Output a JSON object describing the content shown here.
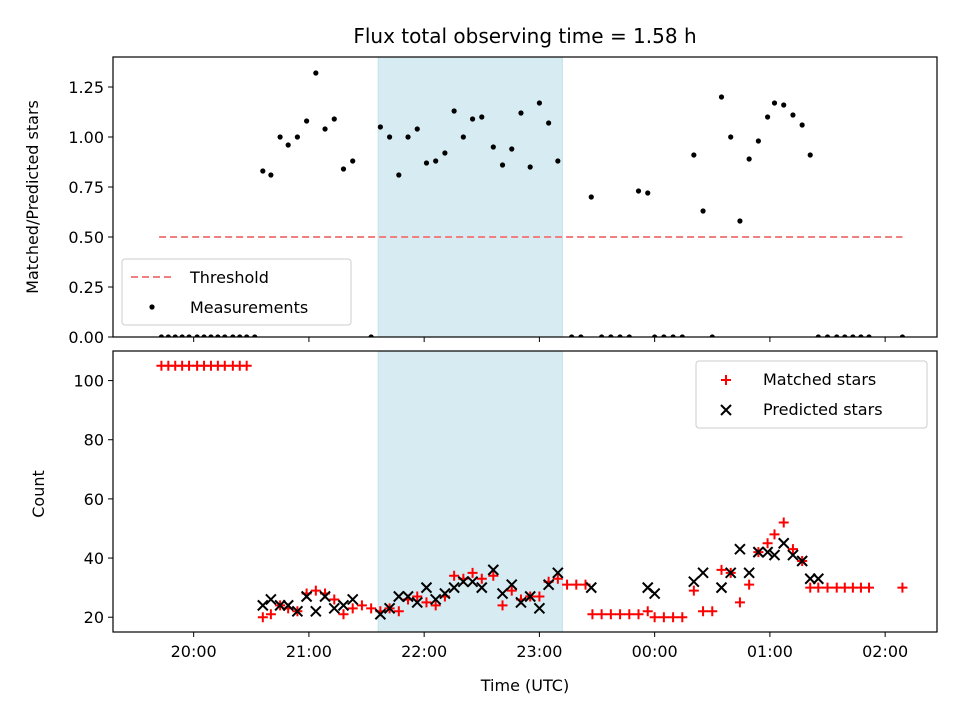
{
  "chart_data": [
    {
      "type": "scatter",
      "panel": "top",
      "title": "Flux total observing time = 1.58 h",
      "ylabel": "Matched/Predicted stars",
      "xlabel": "",
      "xlim": [
        19.3,
        26.45
      ],
      "ylim": [
        0,
        1.4
      ],
      "yticks": [
        0.0,
        0.25,
        0.5,
        0.75,
        1.0,
        1.25
      ],
      "ytick_labels": [
        "0.00",
        "0.25",
        "0.50",
        "0.75",
        "1.00",
        "1.25"
      ],
      "shaded_region": {
        "x": [
          21.6,
          23.2
        ],
        "color": "#add8e6"
      },
      "threshold": {
        "name": "Threshold",
        "y": 0.5,
        "x": [
          19.7,
          26.15
        ],
        "color": "#f08080"
      },
      "series": [
        {
          "name": "Measurements",
          "color": "#000000",
          "x": [
            19.72,
            19.78,
            19.84,
            19.9,
            19.96,
            20.03,
            20.09,
            20.15,
            20.21,
            20.27,
            20.34,
            20.4,
            20.46,
            20.53,
            20.6,
            20.67,
            20.75,
            20.82,
            20.9,
            20.98,
            21.06,
            21.14,
            21.22,
            21.3,
            21.38,
            21.54,
            21.62,
            21.7,
            21.78,
            21.86,
            21.94,
            22.02,
            22.1,
            22.18,
            22.26,
            22.34,
            22.42,
            22.5,
            22.6,
            22.68,
            22.76,
            22.84,
            22.92,
            23.0,
            23.08,
            23.16,
            23.28,
            23.36,
            23.45,
            23.54,
            23.62,
            23.7,
            23.78,
            23.86,
            23.94,
            24.0,
            24.08,
            24.16,
            24.24,
            24.34,
            24.42,
            24.5,
            24.58,
            24.66,
            24.74,
            24.82,
            24.9,
            24.98,
            25.04,
            25.12,
            25.2,
            25.28,
            25.35,
            25.42,
            25.5,
            25.58,
            25.65,
            25.72,
            25.79,
            25.86,
            26.15
          ],
          "y": [
            0,
            0,
            0,
            0,
            0,
            0,
            0,
            0,
            0,
            0,
            0,
            0,
            0,
            0,
            0.83,
            0.81,
            1.0,
            0.96,
            1.0,
            1.08,
            1.32,
            1.04,
            1.09,
            0.84,
            0.88,
            0,
            1.05,
            1.0,
            0.81,
            1.0,
            1.04,
            0.87,
            0.88,
            0.92,
            1.13,
            1.0,
            1.09,
            1.1,
            0.95,
            0.86,
            0.94,
            1.12,
            0.85,
            1.17,
            1.07,
            0.88,
            0,
            0,
            0.7,
            0,
            0,
            0,
            0,
            0.73,
            0.72,
            0,
            0,
            0,
            0,
            0.91,
            0.63,
            0,
            1.2,
            1.0,
            0.58,
            0.89,
            0.98,
            1.1,
            1.17,
            1.16,
            1.11,
            1.06,
            0.91,
            0,
            0,
            0,
            0,
            0,
            0,
            0,
            0
          ]
        }
      ],
      "legend": {
        "placement": "lower-left",
        "entries": [
          "Threshold",
          "Measurements"
        ]
      }
    },
    {
      "type": "scatter",
      "panel": "bottom",
      "xlabel": "Time (UTC)",
      "ylabel": "Count",
      "xlim": [
        19.3,
        26.45
      ],
      "ylim": [
        15,
        110
      ],
      "xticks": [
        20,
        21,
        22,
        23,
        24,
        25,
        26
      ],
      "xtick_labels": [
        "20:00",
        "21:00",
        "22:00",
        "23:00",
        "00:00",
        "01:00",
        "02:00"
      ],
      "yticks": [
        20,
        40,
        60,
        80,
        100
      ],
      "ytick_labels": [
        "20",
        "40",
        "60",
        "80",
        "100"
      ],
      "shaded_region": {
        "x": [
          21.6,
          23.2
        ],
        "color": "#add8e6"
      },
      "series": [
        {
          "name": "Matched stars",
          "marker": "plus",
          "color": "#ff0000",
          "x": [
            19.72,
            19.78,
            19.84,
            19.9,
            19.96,
            20.03,
            20.09,
            20.15,
            20.21,
            20.27,
            20.34,
            20.4,
            20.46,
            20.6,
            20.67,
            20.75,
            20.82,
            20.9,
            20.98,
            21.06,
            21.14,
            21.22,
            21.3,
            21.38,
            21.46,
            21.54,
            21.62,
            21.7,
            21.78,
            21.86,
            21.94,
            22.02,
            22.1,
            22.18,
            22.26,
            22.34,
            22.42,
            22.5,
            22.6,
            22.68,
            22.76,
            22.84,
            22.92,
            23.0,
            23.08,
            23.16,
            23.24,
            23.32,
            23.4,
            23.46,
            23.54,
            23.62,
            23.7,
            23.78,
            23.86,
            23.94,
            24.0,
            24.08,
            24.16,
            24.24,
            24.34,
            24.42,
            24.5,
            24.58,
            24.66,
            24.74,
            24.82,
            24.9,
            24.98,
            25.04,
            25.12,
            25.2,
            25.28,
            25.35,
            25.42,
            25.5,
            25.58,
            25.65,
            25.72,
            25.79,
            25.86,
            26.15
          ],
          "y": [
            105,
            105,
            105,
            105,
            105,
            105,
            105,
            105,
            105,
            105,
            105,
            105,
            105,
            20,
            21,
            24,
            23,
            22,
            28,
            29,
            28,
            26,
            21,
            23,
            24,
            23,
            22,
            23,
            22,
            26,
            27,
            25,
            24,
            27,
            34,
            33,
            35,
            33,
            34,
            24,
            29,
            26,
            27,
            27,
            32,
            33,
            31,
            31,
            31,
            21,
            21,
            21,
            21,
            21,
            21,
            22,
            20,
            20,
            20,
            20,
            29,
            22,
            22,
            36,
            35,
            25,
            31,
            42,
            45,
            48,
            52,
            43,
            39,
            30,
            30,
            30,
            30,
            30,
            30,
            30,
            30,
            30
          ]
        },
        {
          "name": "Predicted stars",
          "marker": "x",
          "color": "#000000",
          "x": [
            20.6,
            20.67,
            20.75,
            20.82,
            20.9,
            20.98,
            21.06,
            21.14,
            21.22,
            21.3,
            21.38,
            21.62,
            21.7,
            21.78,
            21.86,
            21.94,
            22.02,
            22.1,
            22.18,
            22.26,
            22.34,
            22.42,
            22.5,
            22.6,
            22.68,
            22.76,
            22.84,
            22.92,
            23.0,
            23.08,
            23.16,
            23.45,
            23.94,
            24.0,
            24.34,
            24.42,
            24.58,
            24.66,
            24.74,
            24.82,
            24.9,
            24.98,
            25.04,
            25.12,
            25.2,
            25.28,
            25.35,
            25.42
          ],
          "y": [
            24,
            26,
            24,
            24,
            22,
            27,
            22,
            27,
            23,
            24,
            26,
            21,
            23,
            27,
            27,
            25,
            30,
            26,
            28,
            30,
            32,
            32,
            30,
            36,
            28,
            31,
            25,
            27,
            23,
            31,
            35,
            30,
            30,
            28,
            32,
            35,
            30,
            35,
            43,
            35,
            42,
            42,
            41,
            45,
            41,
            39,
            33,
            33
          ]
        }
      ],
      "legend": {
        "placement": "top-right",
        "entries": [
          "Matched stars",
          "Predicted stars"
        ]
      }
    }
  ]
}
